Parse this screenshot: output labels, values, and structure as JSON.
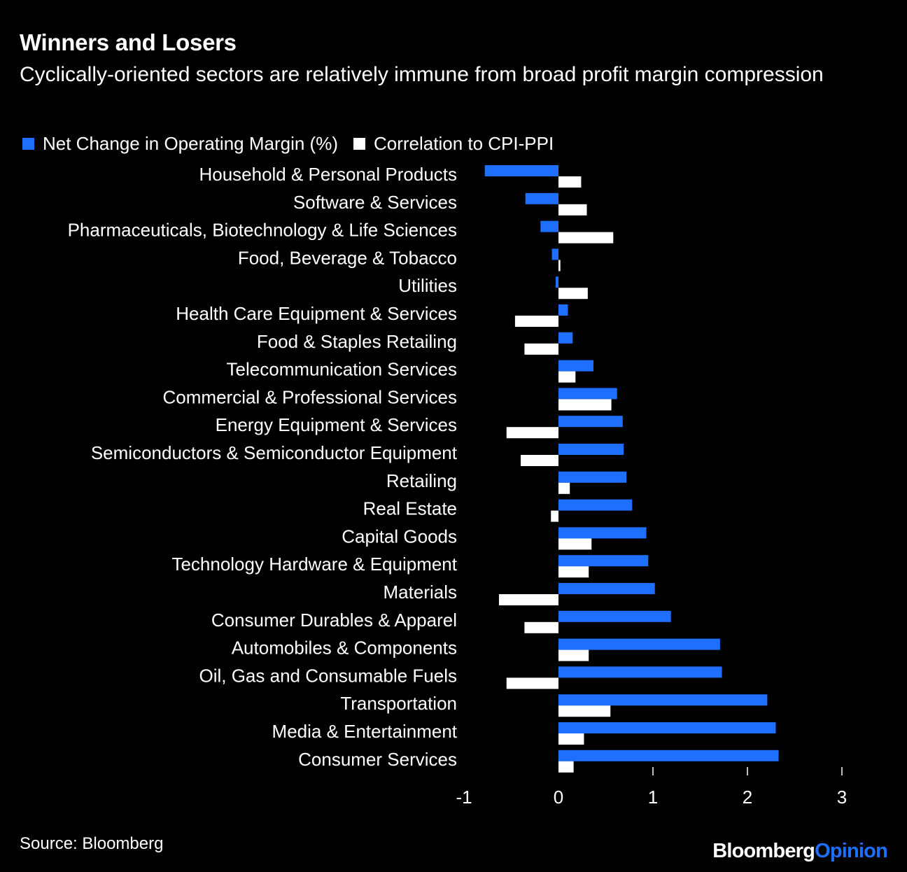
{
  "header": {
    "title": "Winners and Losers",
    "subtitle": "Cyclically-oriented sectors are relatively immune from broad profit margin compression"
  },
  "footer": {
    "source": "Source: Bloomberg",
    "brand_part1": "Bloomberg",
    "brand_part2": "Opinion"
  },
  "colors": {
    "background": "#000000",
    "series1": "#1f6fff",
    "series2": "#ffffff"
  },
  "chart_data": {
    "type": "bar",
    "orientation": "horizontal",
    "title": "Winners and Losers",
    "subtitle": "Cyclically-oriented sectors are relatively immune from broad profit margin compression",
    "categories": [
      "Household & Personal Products",
      "Software & Services",
      "Pharmaceuticals, Biotechnology & Life Sciences",
      "Food, Beverage & Tobacco",
      "Utilities",
      "Health Care Equipment & Services",
      "Food & Staples Retailing",
      "Telecommunication Services",
      "Commercial & Professional Services",
      "Energy Equipment & Services",
      "Semiconductors & Semiconductor Equipment",
      "Retailing",
      "Real Estate",
      "Capital Goods",
      "Technology Hardware & Equipment",
      "Materials",
      "Consumer Durables & Apparel",
      "Automobiles & Components",
      "Oil, Gas and Consumable Fuels",
      "Transportation",
      "Media & Entertainment",
      "Consumer Services"
    ],
    "series": [
      {
        "name": "Net Change in Operating Margin (%)",
        "color": "#1f6fff",
        "values": [
          -0.78,
          -0.35,
          -0.19,
          -0.07,
          -0.03,
          0.1,
          0.15,
          0.37,
          0.62,
          0.68,
          0.69,
          0.72,
          0.78,
          0.93,
          0.95,
          1.02,
          1.19,
          1.71,
          1.73,
          2.21,
          2.3,
          2.33
        ]
      },
      {
        "name": "Correlation to CPI-PPI",
        "color": "#ffffff",
        "values": [
          0.24,
          0.3,
          0.58,
          0.02,
          0.31,
          -0.46,
          -0.36,
          0.18,
          0.56,
          -0.55,
          -0.4,
          0.12,
          -0.08,
          0.35,
          0.32,
          -0.63,
          -0.36,
          0.32,
          -0.55,
          0.55,
          0.27,
          0.16
        ]
      }
    ],
    "xlim": [
      -1,
      3
    ],
    "xticks": [
      "-1",
      "0",
      "1",
      "2",
      "3"
    ],
    "xlabel": "",
    "ylabel": "",
    "legend": "top-left"
  }
}
